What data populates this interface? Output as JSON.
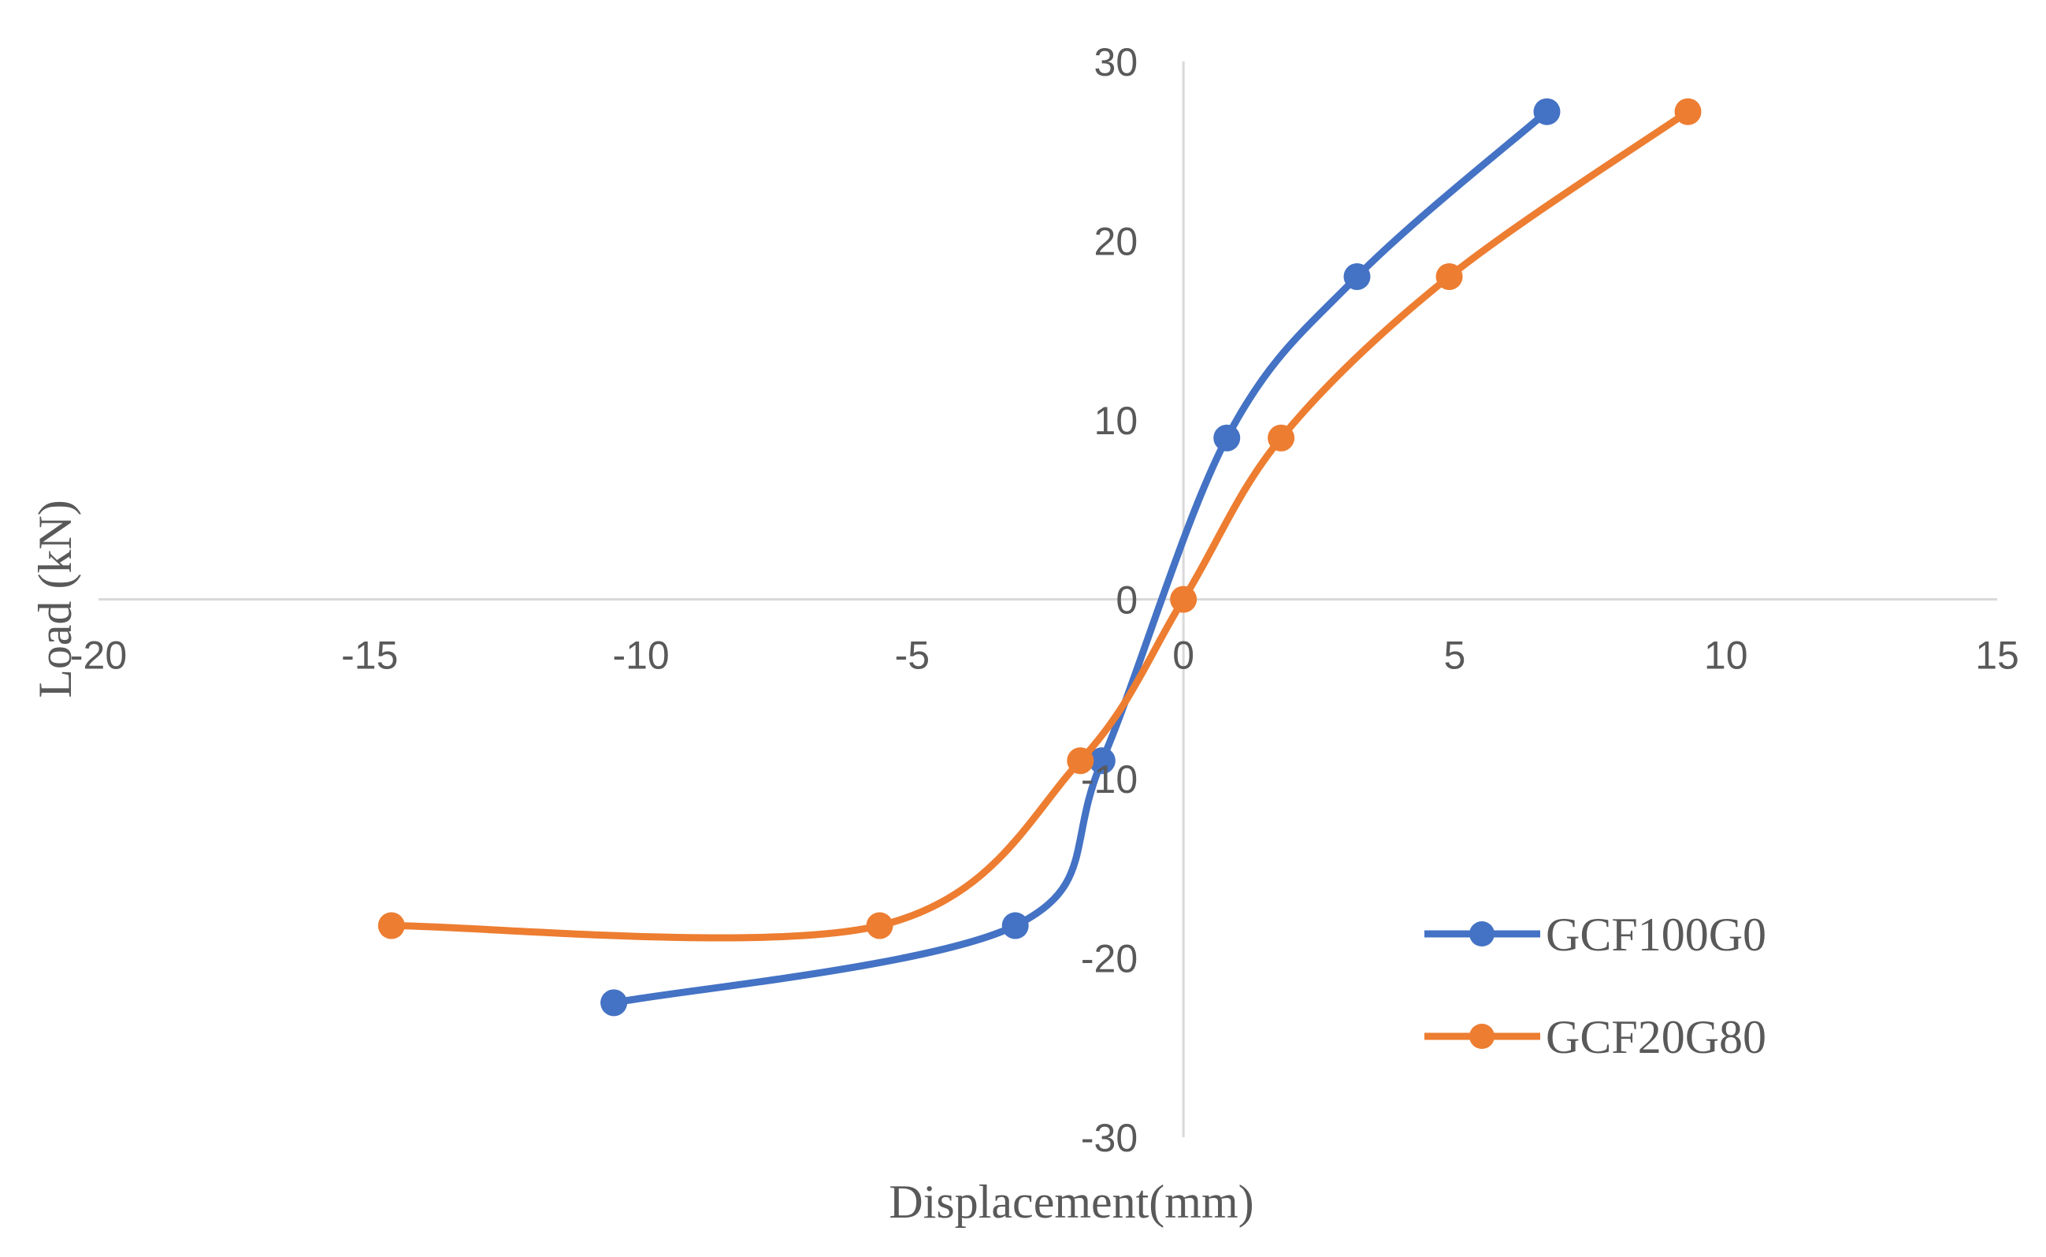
{
  "chart_data": {
    "type": "scatter",
    "title": "",
    "xlabel": "Displacement(mm)",
    "ylabel": "Load (kN)",
    "xlim": [
      -20,
      15
    ],
    "ylim": [
      -30,
      30
    ],
    "x_ticks": [
      "-20",
      "-15",
      "-10",
      "-5",
      "0",
      "5",
      "10",
      "15"
    ],
    "y_ticks": [
      "30",
      "20",
      "10",
      "0",
      "-10",
      "-20",
      "-30"
    ],
    "legend_position": "bottom-right",
    "smooth": true,
    "series": [
      {
        "name": "GCF100G0",
        "color": "#4472C4",
        "points": [
          {
            "x": -10.5,
            "y": -22.5
          },
          {
            "x": -3.1,
            "y": -18.2
          },
          {
            "x": -1.5,
            "y": -9.0
          },
          {
            "x": 0.8,
            "y": 9.0
          },
          {
            "x": 3.2,
            "y": 18.0
          },
          {
            "x": 6.7,
            "y": 27.2
          }
        ]
      },
      {
        "name": "GCF20G80",
        "color": "#ED7D31",
        "points": [
          {
            "x": -14.6,
            "y": -18.2
          },
          {
            "x": -5.6,
            "y": -18.2
          },
          {
            "x": -1.9,
            "y": -9.0
          },
          {
            "x": 0.0,
            "y": 0.0
          },
          {
            "x": 1.8,
            "y": 9.0
          },
          {
            "x": 4.9,
            "y": 18.0
          },
          {
            "x": 9.3,
            "y": 27.2
          }
        ]
      }
    ]
  }
}
